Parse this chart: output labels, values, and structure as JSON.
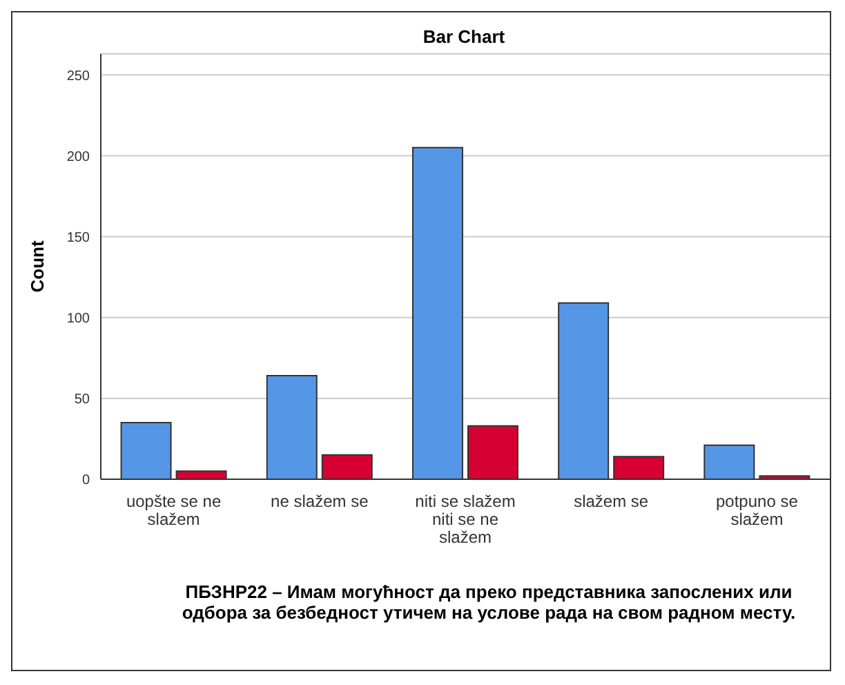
{
  "chart_data": {
    "type": "bar",
    "title": "Bar Chart",
    "xlabel": "ПБЗНР22 – Имам могућност да преко представника запослених или одбора за безбедност утичем на услове рада на свом радном месту.",
    "ylabel": "Count",
    "categories": [
      "uopšte se ne slažem",
      "ne slažem se",
      "niti se slažem niti se ne slažem",
      "slažem se",
      "potpuno se slažem"
    ],
    "series": [
      {
        "color": "#5596e6",
        "values": [
          35,
          64,
          205,
          109,
          21
        ]
      },
      {
        "color": "#d70033",
        "values": [
          5,
          15,
          33,
          14,
          2
        ]
      }
    ],
    "ylim": [
      0,
      263
    ],
    "yticks": [
      0,
      50,
      100,
      150,
      200,
      250
    ],
    "grid": "y",
    "legend": false
  }
}
